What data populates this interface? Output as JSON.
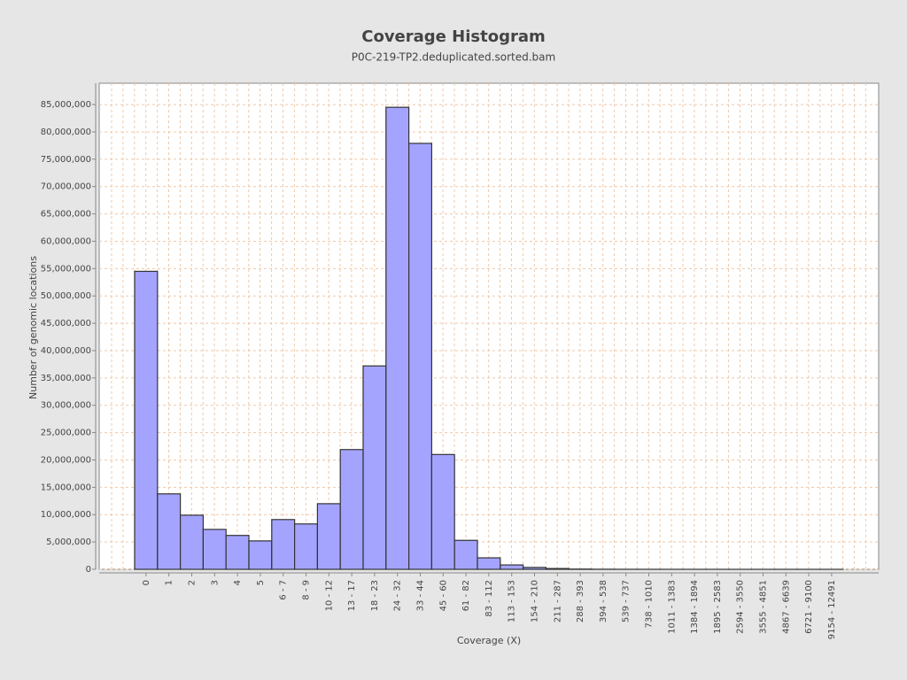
{
  "chart_data": {
    "type": "bar",
    "title": "Coverage Histogram",
    "subtitle": "P0C-219-TP2.deduplicated.sorted.bam",
    "x_label": "Coverage (X)",
    "y_label": "Number of genomic locations",
    "categories": [
      "0",
      "1",
      "2",
      "3",
      "4",
      "5",
      "6 - 7",
      "8 - 9",
      "10 - 12",
      "13 - 17",
      "18 - 23",
      "24 - 32",
      "33 - 44",
      "45 - 60",
      "61 - 82",
      "83 - 112",
      "113 - 153",
      "154 - 210",
      "211 - 287",
      "288 - 393",
      "394 - 538",
      "539 - 737",
      "738 - 1010",
      "1011 - 1383",
      "1384 - 1894",
      "1895 - 2583",
      "2594 - 3550",
      "3555 - 4851",
      "4867 - 6639",
      "6721 - 9100",
      "9154 - 12491"
    ],
    "values": [
      54500000,
      13800000,
      9900000,
      7300000,
      6200000,
      5200000,
      9100000,
      8300000,
      12000000,
      21900000,
      37200000,
      84500000,
      77900000,
      21000000,
      5300000,
      2100000,
      800000,
      350000,
      150000,
      50000,
      20000,
      10000,
      5000,
      3000,
      2000,
      1000,
      500,
      300,
      200,
      100,
      50
    ],
    "color": "#a4a4ff",
    "edge_color": "#333333",
    "ylim": [
      0,
      88900000
    ],
    "yticks": [
      {
        "value": 0,
        "label": "0"
      },
      {
        "value": 5000000,
        "label": "5,000,000"
      },
      {
        "value": 10000000,
        "label": "10,000,000"
      },
      {
        "value": 15000000,
        "label": "15,000,000"
      },
      {
        "value": 20000000,
        "label": "20,000,000"
      },
      {
        "value": 25000000,
        "label": "25,000,000"
      },
      {
        "value": 30000000,
        "label": "30,000,000"
      },
      {
        "value": 35000000,
        "label": "35,000,000"
      },
      {
        "value": 40000000,
        "label": "40,000,000"
      },
      {
        "value": 45000000,
        "label": "45,000,000"
      },
      {
        "value": 50000000,
        "label": "50,000,000"
      },
      {
        "value": 55000000,
        "label": "55,000,000"
      },
      {
        "value": 60000000,
        "label": "60,000,000"
      },
      {
        "value": 65000000,
        "label": "65,000,000"
      },
      {
        "value": 70000000,
        "label": "70,000,000"
      },
      {
        "value": 75000000,
        "label": "75,000,000"
      },
      {
        "value": 80000000,
        "label": "80,000,000"
      },
      {
        "value": 85000000,
        "label": "85,000,000"
      }
    ],
    "grid": true
  }
}
